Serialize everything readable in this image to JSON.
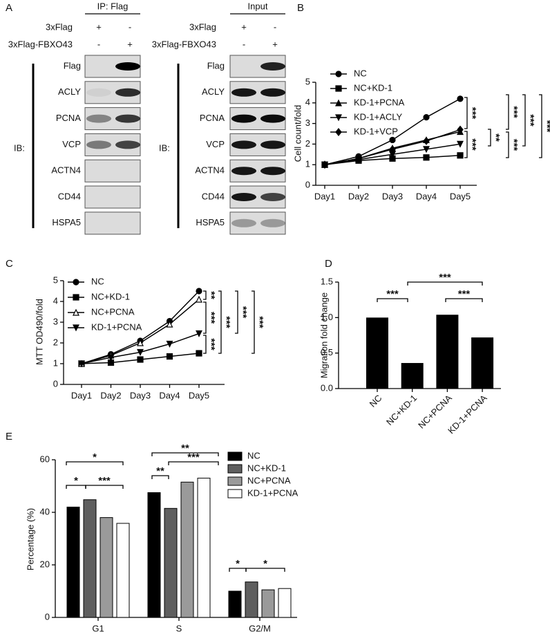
{
  "blots": {
    "panel": "A",
    "ib_label": "IB:",
    "row_labels": [
      "3xFlag",
      "3xFlag-FBXO43"
    ],
    "proteins": [
      "Flag",
      "ACLY",
      "PCNA",
      "VCP",
      "ACTN4",
      "CD44",
      "HSPA5"
    ],
    "groups": [
      {
        "title": "IP: Flag",
        "signs": [
          [
            "+",
            "-"
          ],
          [
            "-",
            "+"
          ]
        ]
      },
      {
        "title": "Input",
        "signs": [
          [
            "+",
            "-"
          ],
          [
            "-",
            "+"
          ]
        ]
      }
    ]
  },
  "chart_data": [
    {
      "type": "line",
      "panel": "B",
      "y_label": "Cell count/fold",
      "categories": [
        "Day1",
        "Day2",
        "Day3",
        "Day4",
        "Day5"
      ],
      "ylim": [
        0,
        5
      ],
      "yticks": [
        0,
        1,
        2,
        3,
        4,
        5
      ],
      "series": [
        {
          "name": "NC",
          "color": "#000000",
          "marker": "circle",
          "values": [
            1,
            1.4,
            2.2,
            3.3,
            4.2
          ]
        },
        {
          "name": "NC+KD-1",
          "color": "#000000",
          "marker": "square",
          "values": [
            1,
            1.2,
            1.3,
            1.35,
            1.45
          ]
        },
        {
          "name": "KD-1+PCNA",
          "color": "#000000",
          "marker": "triangle-up",
          "values": [
            1,
            1.3,
            1.8,
            2.2,
            2.6
          ]
        },
        {
          "name": "KD-1+ACLY",
          "color": "#000000",
          "marker": "triangle-down",
          "values": [
            1,
            1.25,
            1.5,
            1.75,
            2.0
          ]
        },
        {
          "name": "KD-1+VCP",
          "color": "#000000",
          "marker": "diamond",
          "values": [
            1,
            1.3,
            1.75,
            2.15,
            2.7
          ]
        }
      ],
      "annotations": [
        "***",
        "***",
        "**",
        "***",
        "***",
        "***",
        "***"
      ]
    },
    {
      "type": "line",
      "panel": "C",
      "y_label": "MTT OD490/fold",
      "categories": [
        "Day1",
        "Day2",
        "Day3",
        "Day4",
        "Day5"
      ],
      "ylim": [
        0,
        5
      ],
      "yticks": [
        0,
        1,
        2,
        3,
        4,
        5
      ],
      "series": [
        {
          "name": "NC",
          "color": "#000000",
          "marker": "circle",
          "values": [
            1,
            1.45,
            2.1,
            3.05,
            4.5
          ]
        },
        {
          "name": "NC+KD-1",
          "color": "#000000",
          "marker": "square",
          "values": [
            1,
            1.05,
            1.2,
            1.35,
            1.5
          ]
        },
        {
          "name": "NC+PCNA",
          "color": "#000000",
          "marker": "triangle-open",
          "values": [
            1,
            1.4,
            2.0,
            2.9,
            4.1
          ]
        },
        {
          "name": "KD-1+PCNA",
          "color": "#000000",
          "marker": "triangle-down",
          "values": [
            1,
            1.3,
            1.55,
            1.95,
            2.45
          ]
        }
      ],
      "annotations": [
        "**",
        "***",
        "***",
        "***",
        "***",
        "***"
      ]
    },
    {
      "type": "bar",
      "panel": "D",
      "y_label": "Migration fold change",
      "categories": [
        "NC",
        "NC+KD-1",
        "NC+PCNA",
        "KD-1+PCNA"
      ],
      "values": [
        1.0,
        0.36,
        1.04,
        0.72
      ],
      "color": "#000000",
      "ylim": [
        0,
        1.5
      ],
      "yticks": [
        {
          "value": 0,
          "label": "0.0"
        },
        0.5,
        {
          "value": 1,
          "label": "1.0"
        },
        1.5
      ],
      "annotations": [
        "***",
        "***",
        "***"
      ]
    },
    {
      "type": "grouped-bar",
      "panel": "E",
      "y_label": "Percentage (%)",
      "categories": [
        "G1",
        "S",
        "G2/M"
      ],
      "ylim": [
        0,
        60
      ],
      "yticks": [
        0,
        20,
        40,
        60
      ],
      "series": [
        {
          "name": "NC",
          "color": "#000000",
          "values": [
            42,
            47.5,
            10
          ]
        },
        {
          "name": "NC+KD-1",
          "color": "#5f5f5f",
          "values": [
            44.8,
            41.5,
            13.5
          ]
        },
        {
          "name": "NC+PCNA",
          "color": "#9a9a9a",
          "values": [
            38,
            51.5,
            10.5
          ]
        },
        {
          "name": "KD-1+PCNA",
          "color": "#ffffff",
          "values": [
            35.8,
            53,
            11
          ]
        }
      ],
      "annotations": [
        "*",
        "*",
        "***",
        "**",
        "**",
        "***",
        "*",
        "*"
      ]
    }
  ]
}
